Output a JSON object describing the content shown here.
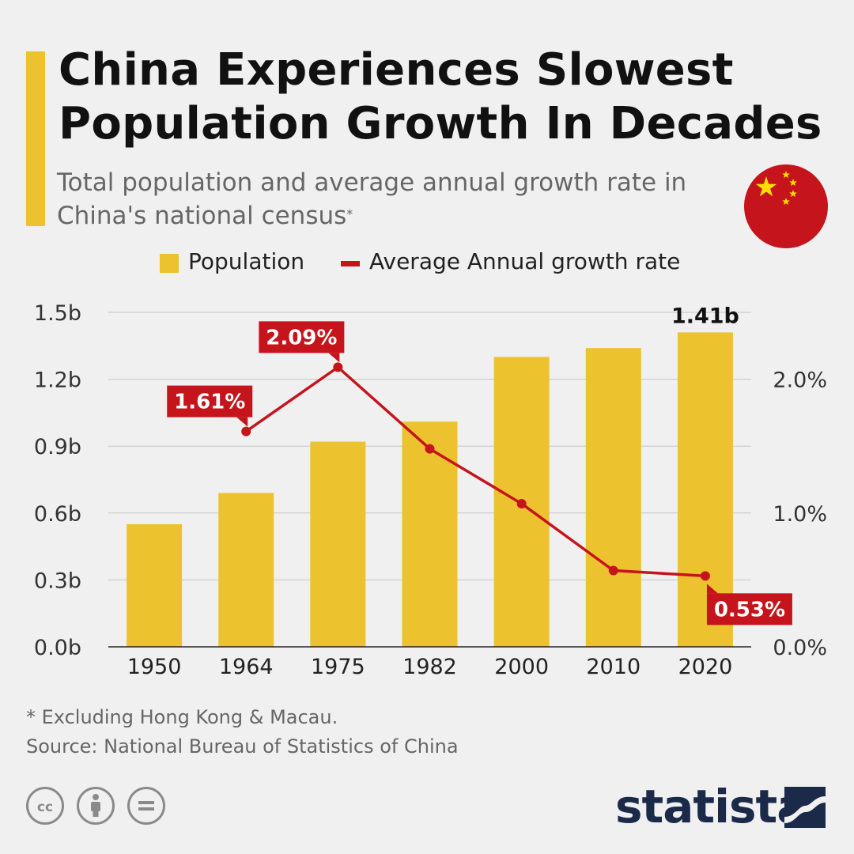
{
  "title": "China Experiences Slowest Population Growth In Decades",
  "subtitle": "Total population and average annual growth rate in China's national census",
  "subtitle_mark": "*",
  "legend": {
    "population": "Population",
    "growth_rate": "Average Annual growth rate"
  },
  "colors": {
    "bar": "#ecc22f",
    "line": "#c5141c",
    "accent": "#ecc22f",
    "flag_red": "#c5141c",
    "flag_star": "#ffde00",
    "logo": "#1c2a4a"
  },
  "chart_data": {
    "type": "bar",
    "categories": [
      "1950",
      "1964",
      "1975",
      "1982",
      "2000",
      "2010",
      "2020"
    ],
    "series": [
      {
        "name": "Population",
        "type": "bar",
        "axis": "left",
        "values": [
          0.55,
          0.69,
          0.92,
          1.01,
          1.3,
          1.34,
          1.41
        ]
      },
      {
        "name": "Average Annual growth rate",
        "type": "line",
        "axis": "right",
        "values": [
          null,
          1.61,
          2.09,
          1.48,
          1.07,
          0.57,
          0.53
        ]
      }
    ],
    "left_axis": {
      "ticks": [
        "0.0b",
        "0.3b",
        "0.6b",
        "0.9b",
        "1.2b",
        "1.5b"
      ],
      "tick_values": [
        0,
        0.3,
        0.6,
        0.9,
        1.2,
        1.5
      ],
      "ylim": [
        0,
        1.5
      ]
    },
    "right_axis": {
      "ticks": [
        "0.0%",
        "1.0%",
        "2.0%"
      ],
      "tick_values": [
        0,
        1,
        2
      ],
      "ylim": [
        0,
        2.5
      ]
    },
    "annotations": [
      {
        "series": "line",
        "index": 1,
        "text": "1.61%",
        "placement": "top-left"
      },
      {
        "series": "line",
        "index": 2,
        "text": "2.09%",
        "placement": "top-left"
      },
      {
        "series": "line",
        "index": 6,
        "text": "0.53%",
        "placement": "bottom-right"
      },
      {
        "series": "bar",
        "index": 6,
        "text": "1.41b",
        "placement": "top"
      }
    ],
    "grid": true
  },
  "footer": {
    "note": "* Excluding Hong Kong & Macau.",
    "source": "Source: National Bureau of Statistics of China",
    "brand": "statista"
  },
  "icons": [
    "cc-license-icon",
    "attribution-icon",
    "no-derivatives-icon",
    "china-flag-icon",
    "statista-logo-icon"
  ]
}
